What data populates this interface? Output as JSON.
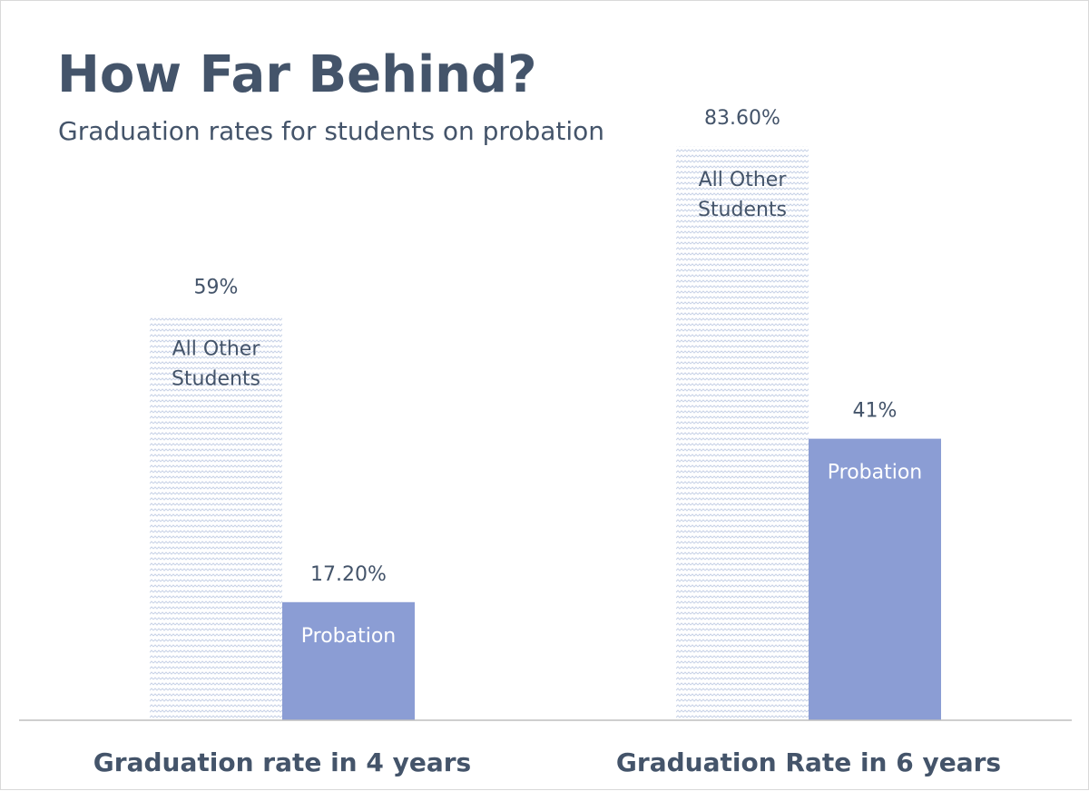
{
  "chart_data": {
    "type": "bar",
    "title": "How Far Behind?",
    "subtitle": "Graduation rates for students on probation",
    "categories": [
      "Graduation rate in 4 years",
      "Graduation Rate in 6 years"
    ],
    "series": [
      {
        "values": [
          59,
          83.6
        ],
        "value_labels": [
          "59%",
          "83.60%"
        ],
        "inbar_label": [
          "All Other",
          "Students"
        ],
        "fill": "pattern",
        "color": "#c9d3e8"
      },
      {
        "values": [
          17.2,
          41
        ],
        "value_labels": [
          "17.20%",
          "41%"
        ],
        "inbar_label": [
          "Probation"
        ],
        "fill": "solid",
        "color": "#8b9dd4"
      }
    ],
    "ylim": [
      0,
      100
    ],
    "grid": false,
    "legend": "none",
    "colors": {
      "title": "#44546a",
      "text": "#44546a",
      "axis": "#bfbfbf",
      "inbar_text_light": "#ffffff"
    }
  }
}
